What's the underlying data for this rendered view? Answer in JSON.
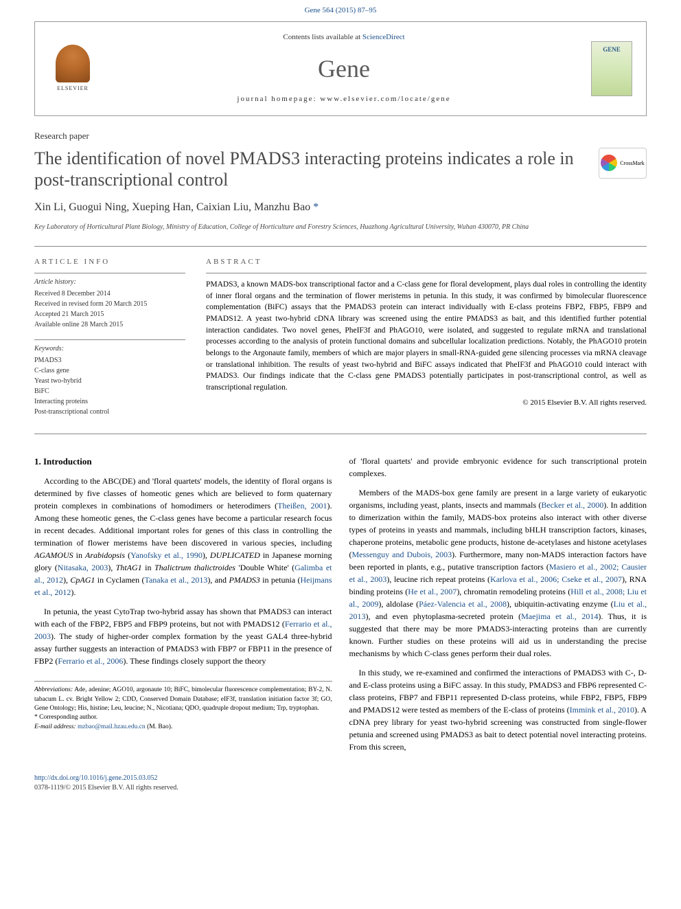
{
  "top_link": "Gene 564 (2015) 87–95",
  "header": {
    "contents_prefix": "Contents lists available at ",
    "contents_link": "ScienceDirect",
    "journal_name": "Gene",
    "homepage_label": "journal homepage: www.elsevier.com/locate/gene",
    "publisher": "ELSEVIER",
    "cover_label": "GENE"
  },
  "paper_type": "Research paper",
  "title": "The identification of novel PMADS3 interacting proteins indicates a role in post-transcriptional control",
  "crossmark_label": "CrossMark",
  "authors_html": "Xin Li, Guogui Ning, Xueping Han, Caixian Liu, Manzhu Bao ",
  "corresponding_mark": "*",
  "affiliation": "Key Laboratory of Horticultural Plant Biology, Ministry of Education, College of Horticulture and Forestry Sciences, Huazhong Agricultural University, Wuhan 430070, PR China",
  "article_info": {
    "header": "ARTICLE INFO",
    "history_label": "Article history:",
    "history_lines": [
      "Received 8 December 2014",
      "Received in revised form 20 March 2015",
      "Accepted 21 March 2015",
      "Available online 28 March 2015"
    ],
    "keywords_label": "Keywords:",
    "keywords": [
      "PMADS3",
      "C-class gene",
      "Yeast two-hybrid",
      "BiFC",
      "Interacting proteins",
      "Post-transcriptional control"
    ]
  },
  "abstract": {
    "header": "ABSTRACT",
    "text": "PMADS3, a known MADS-box transcriptional factor and a C-class gene for floral development, plays dual roles in controlling the identity of inner floral organs and the termination of flower meristems in petunia. In this study, it was confirmed by bimolecular fluorescence complementation (BiFC) assays that the PMADS3 protein can interact individually with E-class proteins FBP2, FBP5, FBP9 and PMADS12. A yeast two-hybrid cDNA library was screened using the entire PMADS3 as bait, and this identified further potential interaction candidates. Two novel genes, PheIF3f and PhAGO10, were isolated, and suggested to regulate mRNA and translational processes according to the analysis of protein functional domains and subcellular localization predictions. Notably, the PhAGO10 protein belongs to the Argonaute family, members of which are major players in small-RNA-guided gene silencing processes via mRNA cleavage or translational inhibition. The results of yeast two-hybrid and BiFC assays indicated that PheIF3f and PhAGO10 could interact with PMADS3. Our findings indicate that the C-class gene PMADS3 potentially participates in post-transcriptional control, as well as transcriptional regulation.",
    "copyright": "© 2015 Elsevier B.V. All rights reserved."
  },
  "intro": {
    "heading": "1. Introduction",
    "p1_pre": "According to the ABC(DE) and 'floral quartets' models, the identity of floral organs is determined by five classes of homeotic genes which are believed to form quaternary protein complexes in combinations of homodimers or heterodimers (",
    "p1_ref1": "Theißen, 2001",
    "p1_mid1": "). Among these homeotic genes, the C-class genes have become a particular research focus in recent decades. Additional important roles for genes of this class in controlling the termination of flower meristems have been discovered in various species, including ",
    "p1_gene1": "AGAMOUS",
    "p1_mid2": " in ",
    "p1_gene2": "Arabidopsis",
    "p1_mid3": " (",
    "p1_ref2": "Yanofsky et al., 1990",
    "p1_mid4": "), ",
    "p1_gene3": "DUPLICATED",
    "p1_mid5": " in Japanese morning glory (",
    "p1_ref3": "Nitasaka, 2003",
    "p1_mid6": "), ",
    "p1_gene4": "ThtAG1",
    "p1_mid7": " in ",
    "p1_gene5": "Thalictrum thalictroides",
    "p1_mid8": " 'Double White' (",
    "p1_ref4": "Galimba et al., 2012",
    "p1_mid9": "), ",
    "p1_gene6": "CpAG1",
    "p1_mid10": " in Cyclamen (",
    "p1_ref5": "Tanaka et al., 2013",
    "p1_mid11": "), and ",
    "p1_gene7": "PMADS3",
    "p1_mid12": " in petunia (",
    "p1_ref6": "Heijmans et al., 2012",
    "p1_end": ").",
    "p2_pre": "In petunia, the yeast CytoTrap two-hybrid assay has shown that PMADS3 can interact with each of the FBP2, FBP5 and FBP9 proteins, but not with PMADS12 (",
    "p2_ref1": "Ferrario et al., 2003",
    "p2_mid1": "). The study of higher-order complex formation by the yeast GAL4 three-hybrid assay further suggests an interaction of PMADS3 with FBP7 or FBP11 in the presence of FBP2 (",
    "p2_ref2": "Ferrario et al., 2006",
    "p2_end": "). These findings closely support the theory",
    "p3": "of 'floral quartets' and provide embryonic evidence for such transcriptional protein complexes.",
    "p4_pre": "Members of the MADS-box gene family are present in a large variety of eukaryotic organisms, including yeast, plants, insects and mammals (",
    "p4_ref1": "Becker et al., 2000",
    "p4_mid1": "). In addition to dimerization within the family, MADS-box proteins also interact with other diverse types of proteins in yeasts and mammals, including bHLH transcription factors, kinases, chaperone proteins, metabolic gene products, histone de-acetylases and histone acetylases (",
    "p4_ref2": "Messenguy and Dubois, 2003",
    "p4_mid2": "). Furthermore, many non-MADS interaction factors have been reported in plants, e.g., putative transcription factors (",
    "p4_ref3": "Masiero et al., 2002; Causier et al., 2003",
    "p4_mid3": "), leucine rich repeat proteins (",
    "p4_ref4": "Karlova et al., 2006; Cseke et al., 2007",
    "p4_mid4": "), RNA binding proteins (",
    "p4_ref5": "He et al., 2007",
    "p4_mid5": "), chromatin remodeling proteins (",
    "p4_ref6": "Hill et al., 2008; Liu et al., 2009",
    "p4_mid6": "), aldolase (",
    "p4_ref7": "Páez-Valencia et al., 2008",
    "p4_mid7": "), ubiquitin-activating enzyme (",
    "p4_ref8": "Liu et al., 2013",
    "p4_mid8": "), and even phytoplasma-secreted protein (",
    "p4_ref9": "Maejima et al., 2014",
    "p4_end": "). Thus, it is suggested that there may be more PMADS3-interacting proteins than are currently known. Further studies on these proteins will aid us in understanding the precise mechanisms by which C-class genes perform their dual roles.",
    "p5_pre": "In this study, we re-examined and confirmed the interactions of PMADS3 with C-, D- and E-class proteins using a BiFC assay. In this study, PMADS3 and FBP6 represented C-class proteins, FBP7 and FBP11 represented D-class proteins, while FBP2, FBP5, FBP9 and PMADS12 were tested as members of the E-class of proteins (",
    "p5_ref1": "Immink et al., 2010",
    "p5_end": "). A cDNA prey library for yeast two-hybrid screening was constructed from single-flower petunia and screened using PMADS3 as bait to detect potential novel interacting proteins. From this screen,"
  },
  "footnotes": {
    "abbrev_label": "Abbreviations:",
    "abbrev_text": " Ade, adenine; AGO10, argonaute 10; BiFC, bimolecular fluorescence complementation; BY-2, N. tabacum L. cv. Bright Yellow 2; CDD, Conserved Domain Database; eIF3f, translation initiation factor 3f; GO, Gene Ontology; His, histine; Leu, leucine; N., Nicotiana; QDO, quadruple dropout medium; Trp, tryptophan.",
    "corr_label": "* Corresponding author.",
    "email_label": "E-mail address: ",
    "email": "mzbao@mail.hzau.edu.cn",
    "email_suffix": " (M. Bao)."
  },
  "footer": {
    "doi": "http://dx.doi.org/10.1016/j.gene.2015.03.052",
    "issn": "0378-1119/© 2015 Elsevier B.V. All rights reserved."
  },
  "colors": {
    "link": "#1a4f8a",
    "text": "#000000",
    "heading_gray": "#4a4a4a",
    "border": "#888888"
  }
}
